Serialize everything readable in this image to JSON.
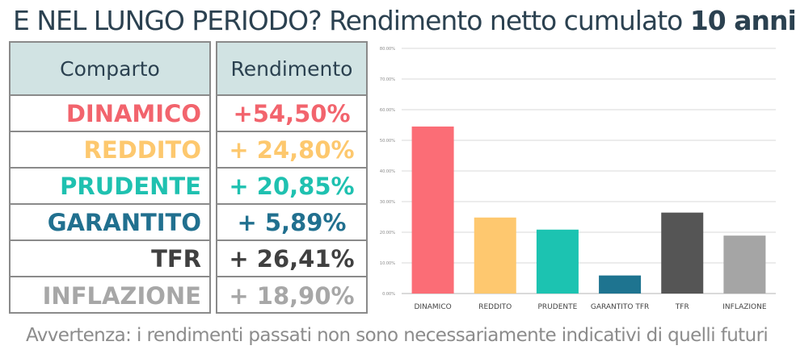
{
  "header": {
    "title_prefix": "E NEL LUNGO PERIODO? Rendimento netto cumulato",
    "title_bold": "10 anni"
  },
  "table": {
    "col1_header": "Comparto",
    "col2_header": "Rendimento",
    "rows": [
      {
        "name": "DINAMICO",
        "value": "+54,50%",
        "color": "#f2646d"
      },
      {
        "name": "REDDITO",
        "value": "+ 24,80%",
        "color": "#fdc86e"
      },
      {
        "name": "PRUDENTE",
        "value": "+ 20,85%",
        "color": "#1fc1b0"
      },
      {
        "name": "GARANTITO",
        "value": "+ 5,89%",
        "color": "#21708f"
      },
      {
        "name": "TFR",
        "value": "+ 26,41%",
        "color": "#404040"
      },
      {
        "name": "INFLAZIONE",
        "value": "+ 18,90%",
        "color": "#a7a7a7"
      }
    ]
  },
  "chart_data": {
    "type": "bar",
    "categories": [
      "DINAMICO",
      "REDDITO",
      "PRUDENTE",
      "GARANTITO TFR",
      "TFR",
      "INFLAZIONE"
    ],
    "values": [
      54.5,
      24.8,
      20.85,
      5.89,
      26.41,
      18.9
    ],
    "colors": [
      "#fb6d76",
      "#fec86f",
      "#1cc3b1",
      "#1e7490",
      "#555555",
      "#a5a5a5"
    ],
    "ylim": [
      0,
      80
    ],
    "yticks": [
      "0.00%",
      "10.00%",
      "20.00%",
      "30.00%",
      "40.00%",
      "50.00%",
      "60.00%",
      "70.00%",
      "80.00%"
    ],
    "grid": true,
    "title": "",
    "xlabel": "",
    "ylabel": ""
  },
  "footer": {
    "note": "Avvertenza: i rendimenti passati non sono necessariamente indicativi di quelli futuri"
  }
}
